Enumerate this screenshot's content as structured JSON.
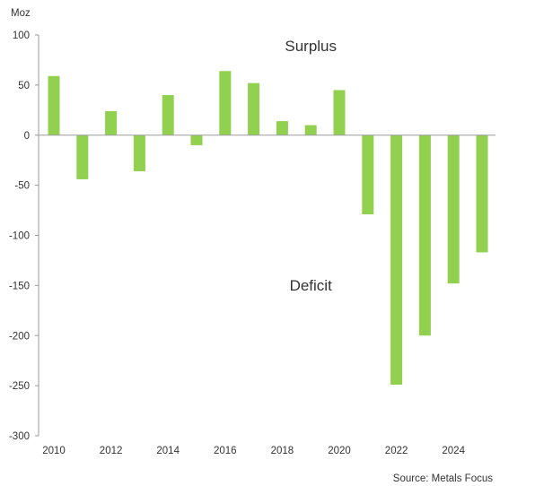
{
  "chart_data": {
    "type": "bar",
    "title": "",
    "unit_label": "Moz",
    "xlabel": "",
    "ylabel": "",
    "ylim": [
      -300,
      100
    ],
    "ytick_step": 50,
    "grid": false,
    "x": [
      2010,
      2011,
      2012,
      2013,
      2014,
      2015,
      2016,
      2017,
      2018,
      2019,
      2020,
      2021,
      2022,
      2023,
      2024,
      2025
    ],
    "xtick_labels": [
      "2010",
      "2012",
      "2014",
      "2016",
      "2018",
      "2020",
      "2022",
      "2024"
    ],
    "values": [
      59,
      -44,
      24,
      -36,
      40,
      -10,
      64,
      52,
      14,
      10,
      45,
      -79,
      -249,
      -200,
      -148,
      -117
    ],
    "bar_color": "#92d050",
    "annotations": [
      {
        "text": "Surplus",
        "x": 2019,
        "y": 84
      },
      {
        "text": "Deficit",
        "x": 2019,
        "y": -155
      }
    ],
    "source": "Source: Metals Focus"
  }
}
